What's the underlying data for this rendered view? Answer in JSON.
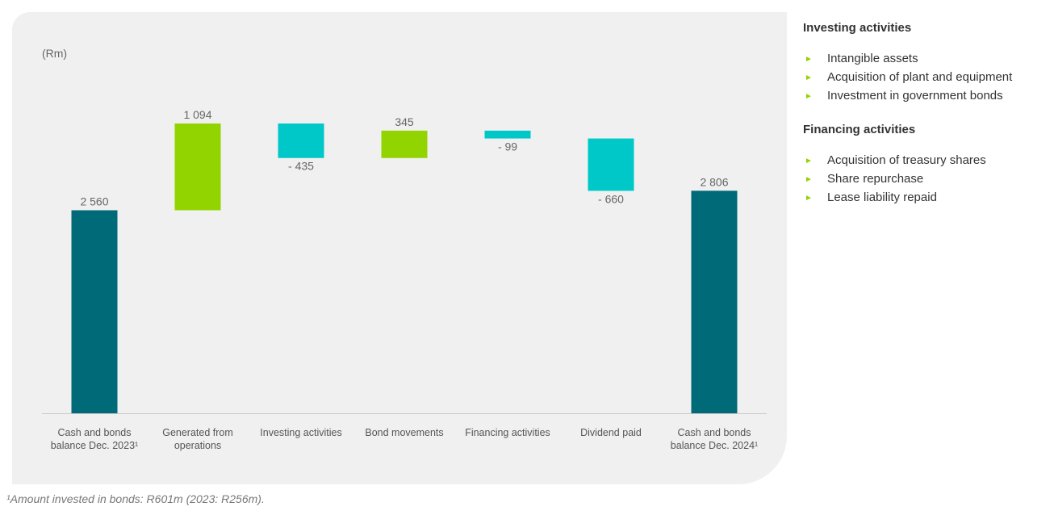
{
  "chart_data": {
    "type": "waterfall",
    "unit_label": "(Rm)",
    "categories": [
      "Cash and bonds balance Dec. 2023¹",
      "Generated from operations",
      "Investing activities",
      "Bond movements",
      "Financing activities",
      "Dividend paid",
      "Cash and bonds balance Dec. 2024¹"
    ],
    "values": [
      2560,
      1094,
      -435,
      345,
      -99,
      -660,
      2806
    ],
    "value_labels": [
      "2 560",
      "1 094",
      "- 435",
      "345",
      "- 99",
      "- 660",
      "2 806"
    ],
    "colors": [
      "#006a78",
      "#92d400",
      "#00c8c8",
      "#92d400",
      "#00c8c8",
      "#00c8c8",
      "#006a78"
    ],
    "footnote": "¹Amount invested in bonds: R601m (2023: R256m)."
  },
  "side_panel": {
    "sections": [
      {
        "heading": "Investing activities",
        "items": [
          "Intangible assets",
          "Acquisition of plant and equipment",
          "Investment in government bonds"
        ]
      },
      {
        "heading": "Financing activities",
        "items": [
          "Acquisition of treasury shares",
          "Share repurchase",
          "Lease liability repaid"
        ]
      }
    ]
  }
}
